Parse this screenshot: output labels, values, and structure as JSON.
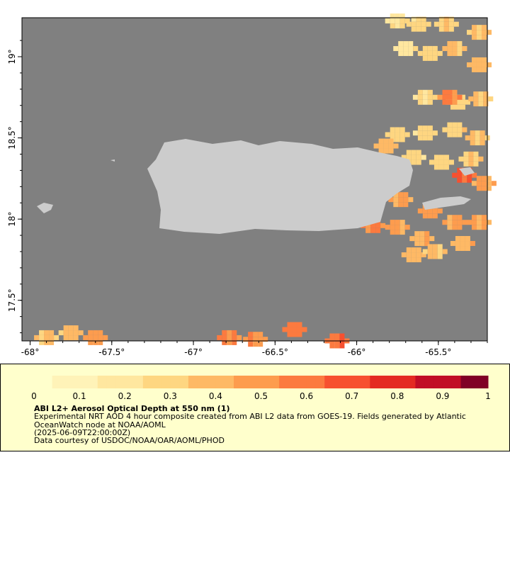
{
  "map": {
    "lon_range": [
      -68.05,
      -65.2
    ],
    "lat_range": [
      17.25,
      19.24
    ],
    "lon_ticks": [
      "-68°",
      "-67.5°",
      "-67°",
      "-66.5°",
      "-66°",
      "-65.5°"
    ],
    "lat_ticks": [
      "17.5°",
      "18°",
      "18.5°",
      "19°"
    ],
    "colors": {
      "ocean": "#808080",
      "land": "#cccccc",
      "frame": "#000000"
    },
    "scale_max": 1,
    "aod_cells": [
      [
        -65.75,
        19.22,
        0.27
      ],
      [
        -65.62,
        19.2,
        0.3
      ],
      [
        -65.45,
        19.2,
        0.32
      ],
      [
        -65.25,
        19.15,
        0.35
      ],
      [
        -65.7,
        19.05,
        0.22
      ],
      [
        -65.55,
        19.02,
        0.3
      ],
      [
        -65.4,
        19.05,
        0.38
      ],
      [
        -65.25,
        18.95,
        0.4
      ],
      [
        -65.58,
        18.75,
        0.25
      ],
      [
        -65.38,
        18.72,
        0.3
      ],
      [
        -65.24,
        18.74,
        0.35
      ],
      [
        -65.43,
        18.75,
        0.55
      ],
      [
        -65.75,
        18.52,
        0.3
      ],
      [
        -65.58,
        18.53,
        0.28
      ],
      [
        -65.4,
        18.55,
        0.32
      ],
      [
        -65.26,
        18.5,
        0.35
      ],
      [
        -65.82,
        18.45,
        0.4
      ],
      [
        -65.65,
        18.38,
        0.28
      ],
      [
        -65.48,
        18.35,
        0.3
      ],
      [
        -65.3,
        18.37,
        0.33
      ],
      [
        -65.34,
        18.27,
        0.65
      ],
      [
        -65.22,
        18.22,
        0.45
      ],
      [
        -65.73,
        18.12,
        0.45
      ],
      [
        -65.55,
        18.05,
        0.5
      ],
      [
        -65.4,
        17.98,
        0.48
      ],
      [
        -65.25,
        17.98,
        0.46
      ],
      [
        -65.75,
        17.95,
        0.48
      ],
      [
        -65.9,
        17.96,
        0.55
      ],
      [
        -65.6,
        17.88,
        0.42
      ],
      [
        -65.35,
        17.85,
        0.42
      ],
      [
        -65.65,
        17.78,
        0.4
      ],
      [
        -65.52,
        17.8,
        0.36
      ],
      [
        -67.9,
        17.27,
        0.35
      ],
      [
        -67.75,
        17.3,
        0.38
      ],
      [
        -67.6,
        17.27,
        0.5
      ],
      [
        -66.78,
        17.27,
        0.55
      ],
      [
        -66.62,
        17.26,
        0.52
      ],
      [
        -66.38,
        17.32,
        0.6
      ],
      [
        -66.12,
        17.25,
        0.62
      ]
    ]
  },
  "colorbar": {
    "labels": [
      "0",
      "0.1",
      "0.2",
      "0.3",
      "0.4",
      "0.5",
      "0.6",
      "0.7",
      "0.8",
      "0.9",
      "1"
    ],
    "colors": [
      "#ffffcc",
      "#fff3b8",
      "#ffe79f",
      "#fed681",
      "#feb965",
      "#fd9c4e",
      "#fc7a3f",
      "#f7502f",
      "#e42a22",
      "#c10d26",
      "#800026"
    ]
  },
  "legend": {
    "title": "ABI L2+ Aerosol Optical Depth at 550 nm (1)",
    "line1": "Experimental NRT AOD 4 hour composite created from ABI L2 data from GOES-19. Fields generated by Atlantic",
    "line2": "OceanWatch node at NOAA/AOML",
    "line3": "(2025-06-09T22:00:00Z)",
    "line4": "Data courtesy of USDOC/NOAA/OAR/AOML/PHOD"
  }
}
